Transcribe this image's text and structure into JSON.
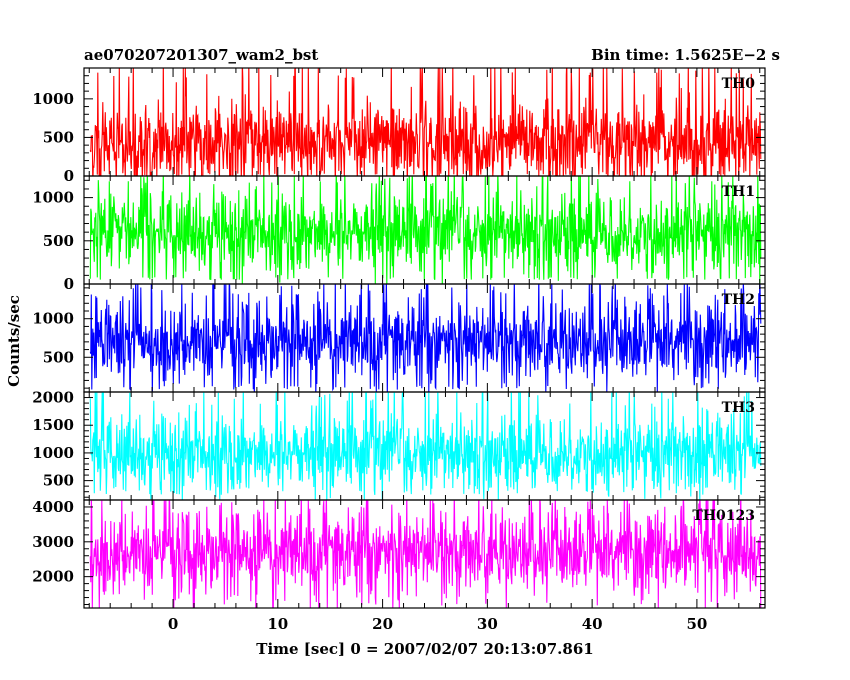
{
  "chart_data": {
    "type": "line",
    "title": "ae070207201307_wam2_bst",
    "subtitle": "Bin time: 1.5625E−2 s",
    "xlabel": "Time [sec] 0 = 2007/02/07 20:13:07.861",
    "ylabel": "Counts/sec",
    "xlim": [
      -8.5,
      56.5
    ],
    "x_data_range": [
      -7.9,
      56.1
    ],
    "xticks": [
      0,
      10,
      20,
      30,
      40,
      50
    ],
    "xtick_labels": [
      "0",
      "10",
      "20",
      "30",
      "40",
      "50"
    ],
    "grid": false,
    "legend": "none",
    "panels": [
      {
        "name": "TH0",
        "color": "#ff0000",
        "ylim": [
          0,
          1400
        ],
        "yticks": [
          0,
          500,
          1000
        ],
        "ytick_labels": [
          "0",
          "500",
          "1000"
        ],
        "typical_mean": 420,
        "typical_min": 20,
        "typical_max": 1400
      },
      {
        "name": "TH1",
        "color": "#00ff00",
        "ylim": [
          0,
          1250
        ],
        "yticks": [
          0,
          500,
          1000
        ],
        "ytick_labels": [
          "0",
          "500",
          "1000"
        ],
        "typical_mean": 600,
        "typical_min": 60,
        "typical_max": 1250
      },
      {
        "name": "TH2",
        "color": "#0000ff",
        "ylim": [
          50,
          1450
        ],
        "yticks": [
          500,
          1000
        ],
        "ytick_labels": [
          "500",
          "1000"
        ],
        "typical_mean": 700,
        "typical_min": 100,
        "typical_max": 1450
      },
      {
        "name": "TH3",
        "color": "#00ffff",
        "ylim": [
          150,
          2100
        ],
        "yticks": [
          500,
          1000,
          1500,
          2000
        ],
        "ytick_labels": [
          "500",
          "1000",
          "1500",
          "2000"
        ],
        "typical_mean": 1000,
        "typical_min": 300,
        "typical_max": 2100
      },
      {
        "name": "TH0123",
        "color": "#ff00ff",
        "ylim": [
          1100,
          4200
        ],
        "yticks": [
          2000,
          3000,
          4000
        ],
        "ytick_labels": [
          "2000",
          "3000",
          "4000"
        ],
        "typical_mean": 2700,
        "typical_min": 1200,
        "typical_max": 4200
      }
    ]
  }
}
